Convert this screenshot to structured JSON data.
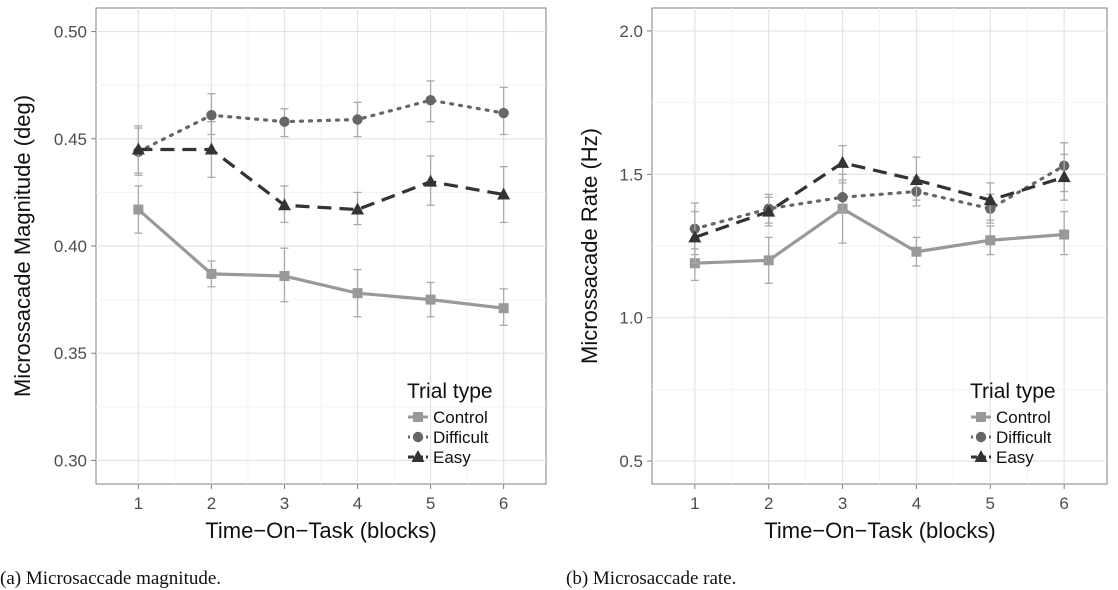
{
  "chart_data": [
    {
      "type": "line",
      "caption": "(a) Microsaccade magnitude.",
      "xlabel": "Time−On−Task (blocks)",
      "ylabel": "Microssacade Magnitude (deg)",
      "x": [
        1,
        2,
        3,
        4,
        5,
        6
      ],
      "xticks": [
        "1",
        "2",
        "3",
        "4",
        "5",
        "6"
      ],
      "xlim": [
        0.42,
        6.58
      ],
      "ylim": [
        0.289,
        0.511
      ],
      "yticks": [
        "0.30",
        "0.35",
        "0.40",
        "0.45",
        "0.50"
      ],
      "yticks_values": [
        0.3,
        0.35,
        0.4,
        0.45,
        0.5
      ],
      "grid": true,
      "legend": {
        "title": "Trial type",
        "position": "bottom-right"
      },
      "series": [
        {
          "name": "Control",
          "style": "solid",
          "marker": "square",
          "color": "#999999",
          "values": [
            0.417,
            0.387,
            0.386,
            0.378,
            0.375,
            0.371
          ],
          "err_low": [
            0.406,
            0.381,
            0.374,
            0.367,
            0.367,
            0.363
          ],
          "err_high": [
            0.428,
            0.393,
            0.399,
            0.389,
            0.383,
            0.38
          ]
        },
        {
          "name": "Difficult",
          "style": "dotted",
          "marker": "circle",
          "color": "#666666",
          "values": [
            0.444,
            0.461,
            0.458,
            0.459,
            0.468,
            0.462
          ],
          "err_low": [
            0.434,
            0.452,
            0.451,
            0.451,
            0.458,
            0.452
          ],
          "err_high": [
            0.455,
            0.471,
            0.464,
            0.467,
            0.477,
            0.474
          ]
        },
        {
          "name": "Easy",
          "style": "dashed",
          "marker": "triangle",
          "color": "#333333",
          "values": [
            0.445,
            0.445,
            0.419,
            0.417,
            0.43,
            0.424
          ],
          "err_low": [
            0.433,
            0.432,
            0.411,
            0.41,
            0.419,
            0.411
          ],
          "err_high": [
            0.456,
            0.458,
            0.428,
            0.425,
            0.442,
            0.437
          ]
        }
      ]
    },
    {
      "type": "line",
      "caption": "(b) Microsaccade rate.",
      "xlabel": "Time−On−Task (blocks)",
      "ylabel": "Microssacade Rate (Hz)",
      "x": [
        1,
        2,
        3,
        4,
        5,
        6
      ],
      "xticks": [
        "1",
        "2",
        "3",
        "4",
        "5",
        "6"
      ],
      "xlim": [
        0.42,
        6.58
      ],
      "ylim": [
        0.42,
        2.08
      ],
      "yticks": [
        "0.5",
        "1.0",
        "1.5",
        "2.0"
      ],
      "yticks_values": [
        0.5,
        1.0,
        1.5,
        2.0
      ],
      "grid": true,
      "legend": {
        "title": "Trial type",
        "position": "bottom-right"
      },
      "series": [
        {
          "name": "Control",
          "style": "solid",
          "marker": "square",
          "color": "#999999",
          "values": [
            1.19,
            1.2,
            1.38,
            1.23,
            1.27,
            1.29
          ],
          "err_low": [
            1.13,
            1.12,
            1.26,
            1.18,
            1.22,
            1.22
          ],
          "err_high": [
            1.24,
            1.28,
            1.5,
            1.28,
            1.32,
            1.37
          ]
        },
        {
          "name": "Difficult",
          "style": "dotted",
          "marker": "circle",
          "color": "#666666",
          "values": [
            1.31,
            1.38,
            1.42,
            1.44,
            1.38,
            1.53
          ],
          "err_low": [
            1.22,
            1.33,
            1.37,
            1.39,
            1.33,
            1.44
          ],
          "err_high": [
            1.4,
            1.43,
            1.47,
            1.49,
            1.43,
            1.61
          ]
        },
        {
          "name": "Easy",
          "style": "dashed",
          "marker": "triangle",
          "color": "#333333",
          "values": [
            1.28,
            1.37,
            1.54,
            1.48,
            1.41,
            1.49
          ],
          "err_low": [
            1.19,
            1.32,
            1.48,
            1.41,
            1.34,
            1.41
          ],
          "err_high": [
            1.37,
            1.42,
            1.6,
            1.56,
            1.47,
            1.57
          ]
        }
      ]
    }
  ]
}
